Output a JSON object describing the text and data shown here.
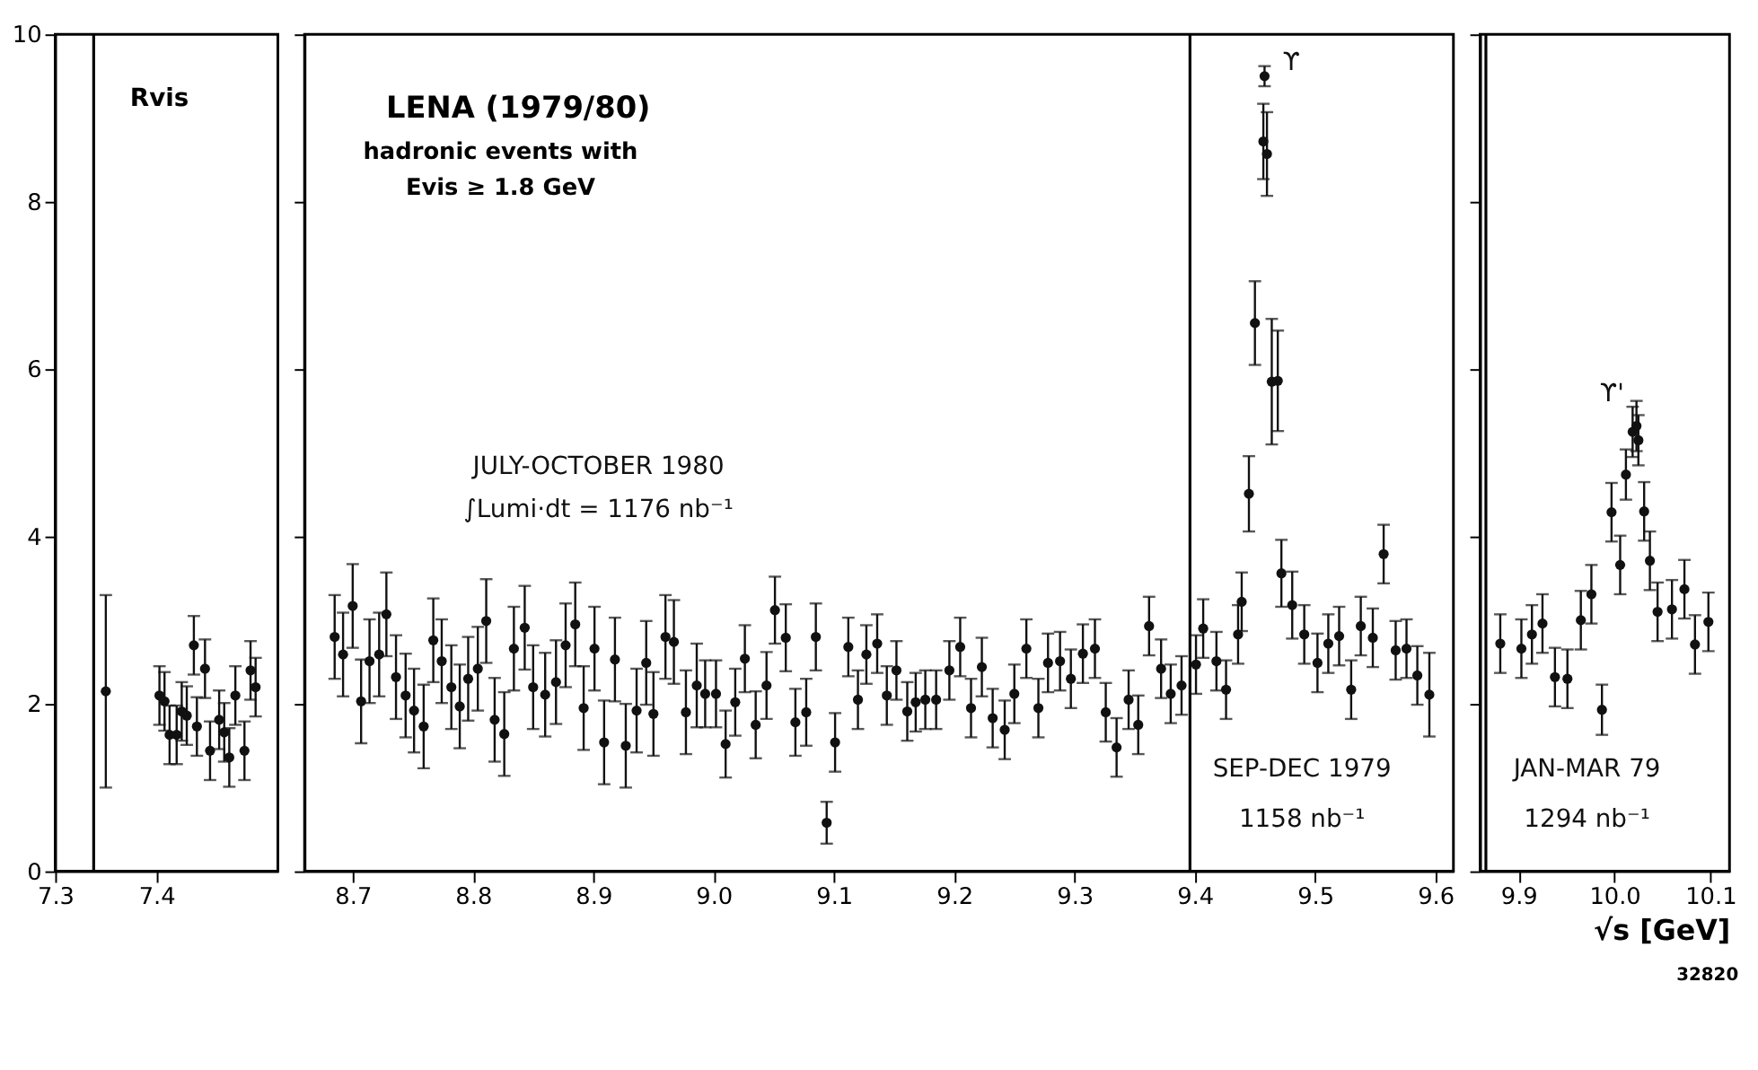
{
  "chart_data": [
    {
      "type": "scatter",
      "ylabel": "Rvis",
      "marker": "circle",
      "grid": false,
      "xlim": [
        7.3,
        7.52
      ],
      "xticks": [
        7.3,
        7.4
      ],
      "ylim": [
        0,
        10
      ],
      "yticks": [
        0,
        2,
        4,
        6,
        8,
        10
      ],
      "ref_lines": [
        {
          "axis": "x",
          "value": 7.338
        }
      ],
      "series": [
        {
          "color": "#111111",
          "x": [
            7.35,
            7.403,
            7.408,
            7.413,
            7.42,
            7.425,
            7.43,
            7.437,
            7.44,
            7.448,
            7.453,
            7.462,
            7.467,
            7.472,
            7.478,
            7.487,
            7.493,
            7.498
          ],
          "values": [
            2.15,
            2.1,
            2.03,
            1.63,
            1.63,
            1.91,
            1.86,
            2.7,
            1.73,
            2.42,
            1.44,
            1.81,
            1.66,
            1.36,
            2.1,
            1.44,
            2.4,
            2.2
          ],
          "errors": [
            1.15,
            0.35,
            0.35,
            0.35,
            0.35,
            0.35,
            0.35,
            0.35,
            0.35,
            0.35,
            0.35,
            0.35,
            0.35,
            0.35,
            0.35,
            0.35,
            0.35,
            0.35
          ]
        }
      ]
    },
    {
      "type": "scatter",
      "title": "LENA (1979/80)",
      "subtitle": "hadronic events with\nEvis ≥ 1.8 GeV",
      "marker": "circle",
      "grid": false,
      "tick_labels": "x",
      "xlim": [
        8.66,
        9.615
      ],
      "xticks": [
        8.7,
        8.8,
        8.9,
        {
          "value": 9.0,
          "label": "9.0"
        },
        9.1,
        9.2,
        9.3,
        9.4,
        9.5,
        9.6
      ],
      "ylim": [
        0,
        10
      ],
      "yticks": [
        0,
        2,
        4,
        6,
        8,
        10
      ],
      "ref_lines": [
        {
          "axis": "x",
          "value": 9.396
        }
      ],
      "annotations": [
        "JULY-OCTOBER 1980",
        "∫Lumi·dt = 1176 nb⁻¹",
        "SEP-DEC 1979",
        "1158 nb⁻¹",
        "ϒ"
      ],
      "series": [
        {
          "color": "#111111",
          "x": [
            8.685,
            8.692,
            8.7,
            8.707,
            8.714,
            8.722,
            8.728,
            8.736,
            8.744,
            8.751,
            8.759,
            8.767,
            8.774,
            8.782,
            8.789,
            8.796,
            8.804,
            8.811,
            8.818,
            8.826,
            8.834,
            8.843,
            8.85,
            8.86,
            8.869,
            8.877,
            8.885,
            8.892,
            8.901,
            8.909,
            8.918,
            8.927,
            8.936,
            8.944,
            8.95,
            8.96,
            8.967,
            8.977,
            8.986,
            8.993,
            9.002,
            9.01,
            9.018,
            9.026,
            9.035,
            9.044,
            9.051,
            9.06,
            9.068,
            9.077,
            9.085,
            9.094,
            9.101,
            9.112,
            9.12,
            9.127,
            9.136,
            9.144,
            9.152,
            9.161,
            9.168,
            9.176,
            9.185,
            9.196,
            9.205,
            9.214,
            9.223,
            9.232,
            9.242,
            9.25,
            9.26,
            9.27,
            9.278,
            9.288,
            9.297,
            9.307,
            9.317,
            9.326,
            9.335,
            9.345,
            9.353,
            9.362,
            9.372,
            9.38,
            9.389,
            9.401,
            9.407,
            9.418,
            9.426,
            9.436,
            9.439,
            9.445,
            9.45,
            9.457,
            9.458,
            9.46,
            9.464,
            9.469,
            9.472,
            9.481,
            9.491,
            9.502,
            9.511,
            9.52,
            9.53,
            9.538,
            9.548,
            9.557,
            9.567,
            9.576,
            9.585,
            9.595
          ],
          "values": [
            2.8,
            2.59,
            3.17,
            2.03,
            2.51,
            2.59,
            3.07,
            2.32,
            2.1,
            1.92,
            1.73,
            2.76,
            2.51,
            2.2,
            1.97,
            2.3,
            2.42,
            2.99,
            1.81,
            1.64,
            2.66,
            2.91,
            2.2,
            2.11,
            2.26,
            2.7,
            2.95,
            1.95,
            2.66,
            1.54,
            2.53,
            1.5,
            1.92,
            2.49,
            1.88,
            2.8,
            2.74,
            1.9,
            2.22,
            2.12,
            2.12,
            1.52,
            2.02,
            2.54,
            1.75,
            2.22,
            3.12,
            2.79,
            1.78,
            1.9,
            2.8,
            0.58,
            1.54,
            2.68,
            2.05,
            2.59,
            2.72,
            2.1,
            2.4,
            1.91,
            2.02,
            2.05,
            2.05,
            2.4,
            2.68,
            1.95,
            2.44,
            1.83,
            1.69,
            2.12,
            2.66,
            1.95,
            2.49,
            2.51,
            2.3,
            2.6,
            2.66,
            1.9,
            1.48,
            2.05,
            1.75,
            2.93,
            2.42,
            2.12,
            2.22,
            2.47,
            2.9,
            2.51,
            2.17,
            2.83,
            3.22,
            4.51,
            6.55,
            8.72,
            9.5,
            8.57,
            5.85,
            5.86,
            3.56,
            3.18,
            2.83,
            2.49,
            2.72,
            2.81,
            2.17,
            2.93,
            2.79,
            3.79,
            2.64,
            2.66,
            2.34,
            2.11
          ],
          "errors": [
            0.5,
            0.5,
            0.5,
            0.5,
            0.5,
            0.5,
            0.5,
            0.5,
            0.5,
            0.5,
            0.5,
            0.5,
            0.5,
            0.5,
            0.5,
            0.5,
            0.5,
            0.5,
            0.5,
            0.5,
            0.5,
            0.5,
            0.5,
            0.5,
            0.5,
            0.5,
            0.5,
            0.5,
            0.5,
            0.5,
            0.5,
            0.5,
            0.5,
            0.5,
            0.5,
            0.5,
            0.5,
            0.5,
            0.5,
            0.4,
            0.4,
            0.4,
            0.4,
            0.4,
            0.4,
            0.4,
            0.4,
            0.4,
            0.4,
            0.4,
            0.4,
            0.25,
            0.35,
            0.35,
            0.35,
            0.35,
            0.35,
            0.35,
            0.35,
            0.35,
            0.35,
            0.35,
            0.35,
            0.35,
            0.35,
            0.35,
            0.35,
            0.35,
            0.35,
            0.35,
            0.35,
            0.35,
            0.35,
            0.35,
            0.35,
            0.35,
            0.35,
            0.35,
            0.35,
            0.35,
            0.35,
            0.35,
            0.35,
            0.35,
            0.35,
            0.35,
            0.35,
            0.35,
            0.35,
            0.35,
            0.35,
            0.45,
            0.5,
            0.45,
            0.12,
            0.5,
            0.75,
            0.6,
            0.4,
            0.4,
            0.35,
            0.35,
            0.35,
            0.35,
            0.35,
            0.35,
            0.35,
            0.35,
            0.35,
            0.35,
            0.35,
            0.5
          ]
        }
      ]
    },
    {
      "type": "scatter",
      "xlabel": "√s [GeV]",
      "marker": "circle",
      "grid": false,
      "tick_labels": "x",
      "xlim": [
        9.86,
        10.12
      ],
      "xticks": [
        9.9,
        {
          "value": 10.0,
          "label": "10.0"
        },
        {
          "value": 10.1,
          "label": "10.1"
        }
      ],
      "ylim": [
        0,
        10
      ],
      "yticks": [
        0,
        2,
        4,
        6,
        8,
        10
      ],
      "ref_lines": [
        {
          "axis": "x",
          "value": 9.866
        }
      ],
      "annotations": [
        "JAN-MAR 79",
        "1294 nb⁻¹",
        "ϒ'",
        "32820"
      ],
      "series": [
        {
          "color": "#111111",
          "x": [
            9.881,
            9.903,
            9.914,
            9.925,
            9.938,
            9.951,
            9.965,
            9.976,
            9.987,
            9.997,
            10.006,
            10.012,
            10.019,
            10.023,
            10.025,
            10.031,
            10.037,
            10.045,
            10.06,
            10.073,
            10.084,
            10.098
          ],
          "values": [
            2.72,
            2.66,
            2.83,
            2.96,
            2.32,
            2.3,
            3.0,
            3.31,
            1.93,
            4.29,
            3.66,
            4.74,
            5.25,
            5.32,
            5.15,
            4.3,
            3.71,
            3.1,
            3.13,
            3.37,
            2.71,
            2.98
          ],
          "errors": [
            0.35,
            0.35,
            0.35,
            0.35,
            0.35,
            0.35,
            0.35,
            0.35,
            0.3,
            0.35,
            0.35,
            0.3,
            0.3,
            0.3,
            0.3,
            0.35,
            0.35,
            0.35,
            0.35,
            0.35,
            0.35,
            0.35
          ]
        }
      ]
    }
  ]
}
